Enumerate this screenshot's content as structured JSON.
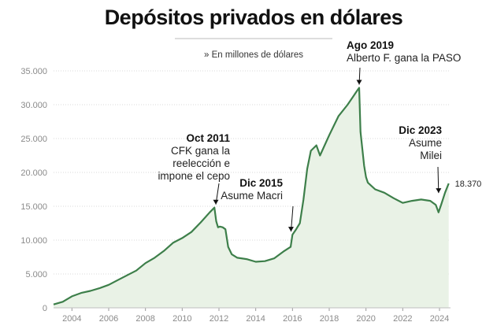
{
  "chart_data": {
    "type": "area",
    "title": "Depósitos privados en dólares",
    "subtitle": "» En millones de dólares",
    "xlabel": "",
    "ylabel": "",
    "xlim": [
      2003,
      2024.6
    ],
    "ylim": [
      0,
      35000
    ],
    "grid": true,
    "x_ticks": [
      "2004",
      "2006",
      "2008",
      "2010",
      "2012",
      "2014",
      "2016",
      "2018",
      "2020",
      "2022",
      "2024"
    ],
    "y_ticks": [
      "0",
      "5.000",
      "10.000",
      "15.000",
      "20.000",
      "25.000",
      "30.000",
      "35.000"
    ],
    "colors": {
      "line": "#3d7f4a",
      "fill": "#e9f2e6"
    },
    "last_value_label": "18.370",
    "series": [
      {
        "x": [
          2003.0,
          2003.5,
          2004.0,
          2004.5,
          2005.0,
          2005.5,
          2006.0,
          2006.5,
          2007.0,
          2007.5,
          2008.0,
          2008.5,
          2009.0,
          2009.5,
          2010.0,
          2010.5,
          2011.0,
          2011.5,
          2011.75,
          2011.85,
          2011.95,
          2012.05,
          2012.2,
          2012.35,
          2012.5,
          2012.7,
          2013.0,
          2013.5,
          2014.0,
          2014.5,
          2015.0,
          2015.5,
          2015.9,
          2016.0,
          2016.2,
          2016.4,
          2016.6,
          2016.8,
          2017.0,
          2017.3,
          2017.5,
          2018.0,
          2018.5,
          2019.0,
          2019.3,
          2019.5,
          2019.63,
          2019.7,
          2019.8,
          2019.9,
          2020.0,
          2020.1,
          2020.5,
          2021.0,
          2021.5,
          2022.0,
          2022.5,
          2023.0,
          2023.5,
          2023.8,
          2023.95,
          2024.1,
          2024.3,
          2024.5
        ],
        "values": [
          500,
          900,
          1700,
          2200,
          2500,
          2900,
          3400,
          4100,
          4800,
          5500,
          6600,
          7400,
          8400,
          9600,
          10300,
          11200,
          12600,
          14100,
          14800,
          12800,
          11900,
          12000,
          11900,
          11600,
          9000,
          7900,
          7400,
          7200,
          6800,
          6900,
          7300,
          8300,
          9000,
          10800,
          11600,
          12500,
          16000,
          20500,
          23200,
          24000,
          22500,
          25500,
          28300,
          30000,
          31200,
          32000,
          32500,
          26000,
          23500,
          21000,
          19300,
          18500,
          17500,
          17000,
          16200,
          15500,
          15800,
          16000,
          15800,
          15200,
          14100,
          15300,
          17000,
          18370
        ]
      }
    ],
    "annotations": [
      {
        "date": "Oct 2011",
        "text": [
          "CFK gana la",
          "reelección e",
          "impone el cepo"
        ],
        "x": 2011.83,
        "y": 14800
      },
      {
        "date": "Dic 2015",
        "text": [
          "Asume Macri"
        ],
        "x": 2015.92,
        "y": 10800
      },
      {
        "date": "Ago 2019",
        "text": [
          "Alberto F. gana la PASO"
        ],
        "x": 2019.63,
        "y": 32500
      },
      {
        "date": "Dic 2023",
        "text": [
          "Asume",
          "Milei"
        ],
        "x": 2023.95,
        "y": 16500
      }
    ]
  }
}
